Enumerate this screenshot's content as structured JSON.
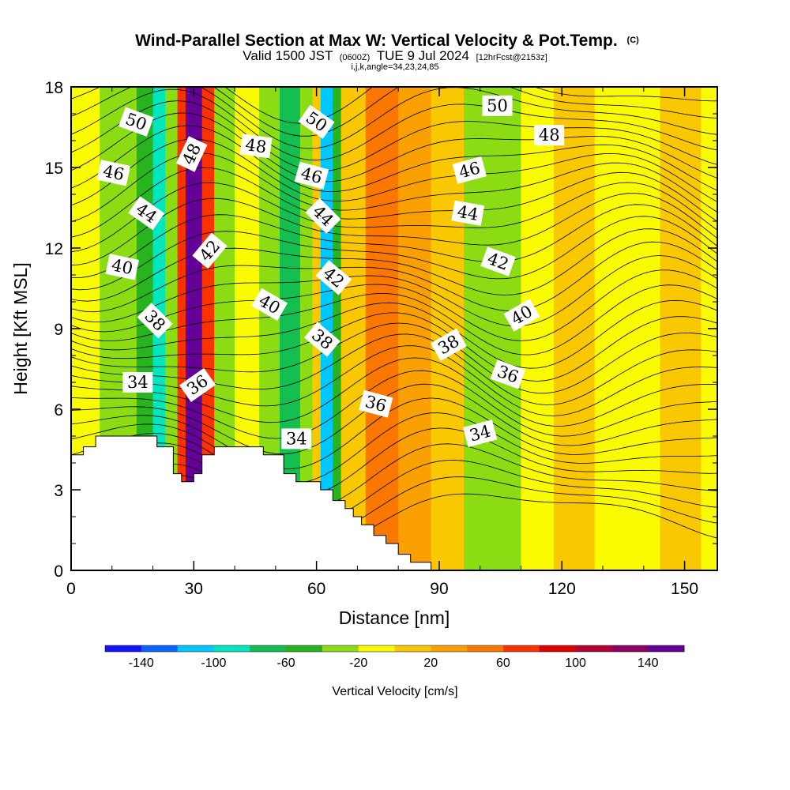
{
  "chart_data": {
    "type": "heatmap",
    "title": "Wind-Parallel Section at Max W: Vertical Velocity & Pot.Temp.",
    "title_mark": "(C)",
    "subtitle": {
      "valid": "Valid 1500 JST",
      "utc": "(0600Z)",
      "date": "TUE 9 Jul 2024",
      "forecast": "[12hrFcst@2153z]"
    },
    "grid_info": "i,j,k,angle=34,23,24,85",
    "xlabel": "Distance [nm]",
    "ylabel": "Height [Kft MSL]",
    "xlim": [
      0,
      158
    ],
    "ylim": [
      0,
      18
    ],
    "x_ticks": [
      "0",
      "30",
      "60",
      "90",
      "120",
      "150"
    ],
    "y_ticks": [
      "0",
      "3",
      "6",
      "9",
      "12",
      "15",
      "18"
    ],
    "colorbar": {
      "label": "Vertical Velocity [cm/s]",
      "tick_labels": [
        "-140",
        "-100",
        "-60",
        "-20",
        "20",
        "60",
        "100",
        "140"
      ],
      "colors": [
        "#1414ff",
        "#0a64ff",
        "#00c8ff",
        "#00e6be",
        "#14be50",
        "#28b41e",
        "#8cdc14",
        "#fafa00",
        "#fac800",
        "#faa000",
        "#fa7800",
        "#fa3200",
        "#dc0000",
        "#b40032",
        "#8c0064",
        "#640096"
      ]
    },
    "w_field": {
      "description": "vertical velocity (cm/s) by distance band",
      "columns": [
        {
          "x": [
            0,
            7
          ],
          "w": -10
        },
        {
          "x": [
            7,
            16
          ],
          "w": -25
        },
        {
          "x": [
            16,
            20
          ],
          "w": -60
        },
        {
          "x": [
            20,
            23
          ],
          "w": -100
        },
        {
          "x": [
            23,
            26
          ],
          "w": -40
        },
        {
          "x": [
            26,
            28
          ],
          "w": 60
        },
        {
          "x": [
            28,
            32
          ],
          "w": 140
        },
        {
          "x": [
            32,
            35
          ],
          "w": 60
        },
        {
          "x": [
            35,
            40
          ],
          "w": -25
        },
        {
          "x": [
            40,
            46
          ],
          "w": -5
        },
        {
          "x": [
            46,
            51
          ],
          "w": -30
        },
        {
          "x": [
            51,
            56
          ],
          "w": -70
        },
        {
          "x": [
            56,
            59
          ],
          "w": -30
        },
        {
          "x": [
            59,
            61
          ],
          "w": 10
        },
        {
          "x": [
            61,
            64
          ],
          "w": -110
        },
        {
          "x": [
            64,
            66
          ],
          "w": -60
        },
        {
          "x": [
            66,
            72
          ],
          "w": 15
        },
        {
          "x": [
            72,
            80
          ],
          "w": 50
        },
        {
          "x": [
            80,
            88
          ],
          "w": 25
        },
        {
          "x": [
            88,
            96
          ],
          "w": 10
        },
        {
          "x": [
            96,
            110
          ],
          "w": -30
        },
        {
          "x": [
            110,
            118
          ],
          "w": -15
        },
        {
          "x": [
            118,
            128
          ],
          "w": 10
        },
        {
          "x": [
            128,
            144
          ],
          "w": -5
        },
        {
          "x": [
            144,
            154
          ],
          "w": 15
        },
        {
          "x": [
            154,
            158
          ],
          "w": -5
        }
      ]
    },
    "theta_contours": {
      "labels": [
        {
          "text": "34",
          "x": 16.3,
          "y": 7.0,
          "angle": 0
        },
        {
          "text": "36",
          "x": 30.9,
          "y": 6.9,
          "angle": -35
        },
        {
          "text": "38",
          "x": 20.5,
          "y": 9.3,
          "angle": 45
        },
        {
          "text": "40",
          "x": 12.5,
          "y": 11.3,
          "angle": 12
        },
        {
          "text": "44",
          "x": 18.4,
          "y": 13.3,
          "angle": 35
        },
        {
          "text": "46",
          "x": 10.4,
          "y": 14.8,
          "angle": 12
        },
        {
          "text": "50",
          "x": 15.9,
          "y": 16.7,
          "angle": 20
        },
        {
          "text": "48",
          "x": 29.5,
          "y": 15.5,
          "angle": -65
        },
        {
          "text": "42",
          "x": 33.9,
          "y": 11.9,
          "angle": -50
        },
        {
          "text": "48",
          "x": 45.2,
          "y": 15.8,
          "angle": 8
        },
        {
          "text": "40",
          "x": 48.5,
          "y": 9.9,
          "angle": 30
        },
        {
          "text": "34",
          "x": 55.1,
          "y": 4.9,
          "angle": 0
        },
        {
          "text": "50",
          "x": 60.0,
          "y": 16.7,
          "angle": 35
        },
        {
          "text": "46",
          "x": 58.8,
          "y": 14.7,
          "angle": 15
        },
        {
          "text": "44",
          "x": 61.6,
          "y": 13.2,
          "angle": 45
        },
        {
          "text": "42",
          "x": 64.2,
          "y": 10.9,
          "angle": 40
        },
        {
          "text": "38",
          "x": 61.4,
          "y": 8.6,
          "angle": 40
        },
        {
          "text": "36",
          "x": 74.5,
          "y": 6.2,
          "angle": 15
        },
        {
          "text": "38",
          "x": 92.3,
          "y": 8.4,
          "angle": -30
        },
        {
          "text": "34",
          "x": 100.0,
          "y": 5.1,
          "angle": -15
        },
        {
          "text": "50",
          "x": 104.2,
          "y": 17.3,
          "angle": 0
        },
        {
          "text": "48",
          "x": 116.9,
          "y": 16.2,
          "angle": 0
        },
        {
          "text": "46",
          "x": 97.4,
          "y": 14.9,
          "angle": -15
        },
        {
          "text": "44",
          "x": 97.0,
          "y": 13.3,
          "angle": 10
        },
        {
          "text": "42",
          "x": 104.4,
          "y": 11.5,
          "angle": 20
        },
        {
          "text": "40",
          "x": 110.2,
          "y": 9.5,
          "angle": -30
        },
        {
          "text": "36",
          "x": 106.8,
          "y": 7.3,
          "angle": 20
        }
      ]
    },
    "terrain": [
      [
        0,
        4.3
      ],
      [
        3,
        4.3
      ],
      [
        3,
        4.6
      ],
      [
        6,
        4.6
      ],
      [
        6,
        5.0
      ],
      [
        21,
        5.0
      ],
      [
        21,
        4.6
      ],
      [
        25,
        4.6
      ],
      [
        25,
        3.6
      ],
      [
        27,
        3.6
      ],
      [
        27,
        3.3
      ],
      [
        30,
        3.3
      ],
      [
        30,
        3.6
      ],
      [
        32,
        3.6
      ],
      [
        32,
        4.3
      ],
      [
        35,
        4.3
      ],
      [
        35,
        4.6
      ],
      [
        47,
        4.6
      ],
      [
        47,
        4.3
      ],
      [
        52,
        4.3
      ],
      [
        52,
        3.6
      ],
      [
        55,
        3.6
      ],
      [
        55,
        3.3
      ],
      [
        61,
        3.3
      ],
      [
        61,
        3.0
      ],
      [
        64,
        3.0
      ],
      [
        64,
        2.6
      ],
      [
        67,
        2.6
      ],
      [
        67,
        2.3
      ],
      [
        69,
        2.3
      ],
      [
        69,
        2.0
      ],
      [
        71,
        2.0
      ],
      [
        71,
        1.7
      ],
      [
        74,
        1.7
      ],
      [
        74,
        1.3
      ],
      [
        77,
        1.3
      ],
      [
        77,
        1.0
      ],
      [
        80,
        1.0
      ],
      [
        80,
        0.6
      ],
      [
        83,
        0.6
      ],
      [
        83,
        0.3
      ],
      [
        88,
        0.3
      ],
      [
        88,
        0.0
      ],
      [
        133,
        0.0
      ],
      [
        133,
        0.0
      ]
    ],
    "colors": {
      "frame": "#000000",
      "terrain": "#ffffff",
      "label_box": "#ffffff"
    }
  }
}
